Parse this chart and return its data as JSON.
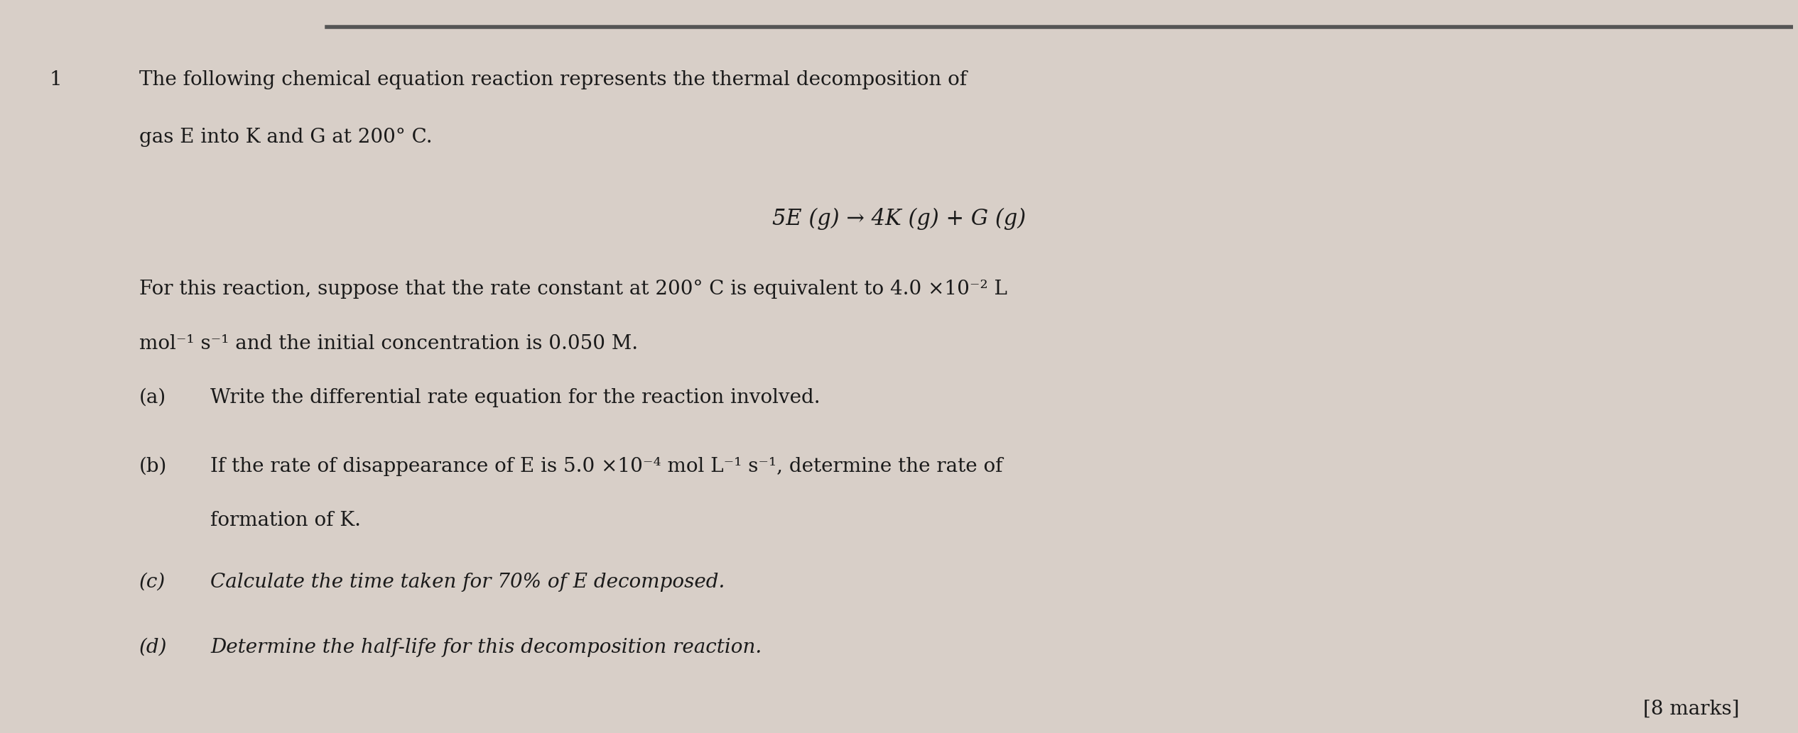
{
  "bg_color": "#d8cfc8",
  "text_color": "#1a1a1a",
  "fig_width": 25.31,
  "fig_height": 10.33,
  "question_number": "1",
  "intro_line1": "The following chemical equation reaction represents the thermal decomposition of",
  "intro_line2": "gas E into K and G at 200° C.",
  "equation": "5E (g) → 4K (g) + G (g)",
  "para_line1": "For this reaction, suppose that the rate constant at 200° C is equivalent to 4.0 ×10⁻² L",
  "para_line2": "mol⁻¹ s⁻¹ and the initial concentration is 0.050 M.",
  "part_a_label": "(a)",
  "part_a_text": "Write the differential rate equation for the reaction involved.",
  "part_b_label": "(b)",
  "part_b_line1": "If the rate of disappearance of E is 5.0 ×10⁻⁴ mol L⁻¹ s⁻¹, determine the rate of",
  "part_b_line2": "formation of K.",
  "part_c_label": "(c)",
  "part_c_text": "Calculate the time taken for 70% of E decomposed.",
  "part_d_label": "(d)",
  "part_d_text": "Determine the half-life for this decomposition reaction.",
  "marks": "[8 marks]",
  "top_bar_color": "#555555",
  "left_edge_color": "#b0a090"
}
